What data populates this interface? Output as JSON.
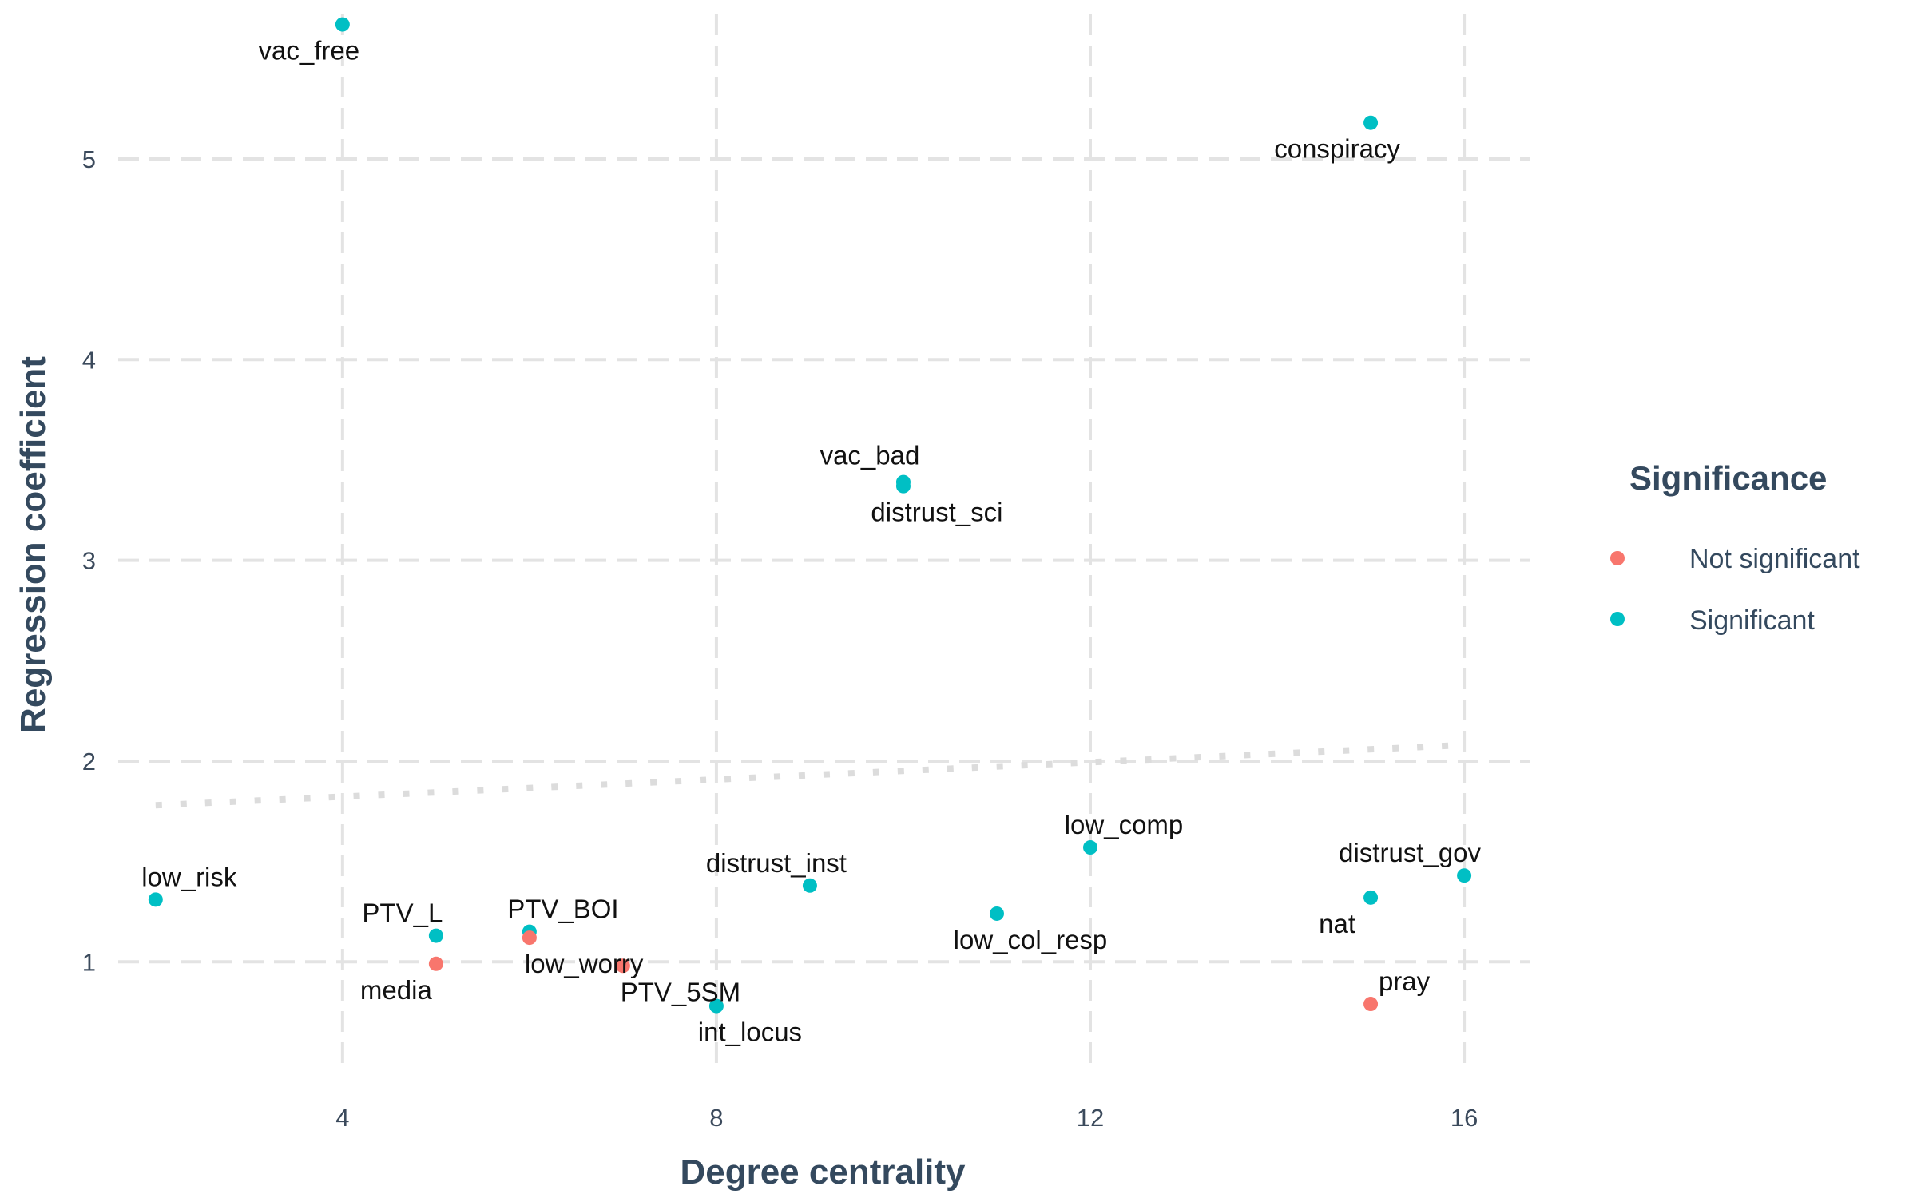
{
  "chart_data": {
    "type": "scatter",
    "xlabel": "Degree centrality",
    "ylabel": "Regression coefficient",
    "xlim": [
      1.6,
      16.7
    ],
    "ylim": [
      0.46,
      5.72
    ],
    "xticks": [
      4,
      8,
      12,
      16
    ],
    "yticks": [
      1,
      2,
      3,
      4,
      5
    ],
    "grid": true,
    "legend": {
      "title": "Significance",
      "position": "right",
      "entries": [
        {
          "name": "Not significant",
          "color": "#F8766D"
        },
        {
          "name": "Significant",
          "color": "#00BFC4"
        }
      ]
    },
    "trend_line": {
      "style": "dotted",
      "x": [
        2,
        16
      ],
      "y": [
        1.78,
        2.08
      ]
    },
    "points": [
      {
        "label": "vac_free",
        "x": 4,
        "y": 5.67,
        "group": "Significant"
      },
      {
        "label": "conspiracy",
        "x": 15,
        "y": 5.18,
        "group": "Significant"
      },
      {
        "label": "vac_bad",
        "x": 10,
        "y": 3.39,
        "group": "Significant"
      },
      {
        "label": "distrust_sci",
        "x": 10,
        "y": 3.37,
        "group": "Significant"
      },
      {
        "label": "low_comp",
        "x": 12,
        "y": 1.57,
        "group": "Significant"
      },
      {
        "label": "distrust_gov",
        "x": 16,
        "y": 1.43,
        "group": "Significant"
      },
      {
        "label": "distrust_inst",
        "x": 9,
        "y": 1.38,
        "group": "Significant"
      },
      {
        "label": "low_risk",
        "x": 2,
        "y": 1.31,
        "group": "Significant"
      },
      {
        "label": "nat",
        "x": 15,
        "y": 1.32,
        "group": "Significant"
      },
      {
        "label": "low_col_resp",
        "x": 11,
        "y": 1.24,
        "group": "Significant"
      },
      {
        "label": "PTV_L",
        "x": 5,
        "y": 1.13,
        "group": "Significant"
      },
      {
        "label": "PTV_BOI",
        "x": 6,
        "y": 1.15,
        "group": "Significant"
      },
      {
        "label": "low_worry",
        "x": 6,
        "y": 1.12,
        "group": "Not significant"
      },
      {
        "label": "media",
        "x": 5,
        "y": 0.99,
        "group": "Not significant"
      },
      {
        "label": "PTV_5SM",
        "x": 7,
        "y": 0.98,
        "group": "Not significant"
      },
      {
        "label": "int_locus",
        "x": 8,
        "y": 0.78,
        "group": "Significant"
      },
      {
        "label": "pray",
        "x": 15,
        "y": 0.79,
        "group": "Not significant"
      }
    ]
  }
}
